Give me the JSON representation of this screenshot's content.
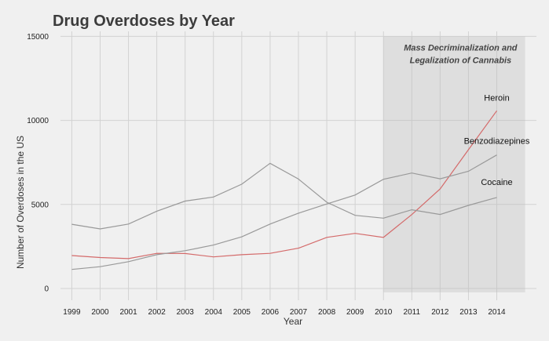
{
  "chart_data": {
    "type": "line",
    "title": "Drug Overdoses by Year",
    "xlabel": "Year",
    "ylabel": "Number of Overdoses in the US",
    "x": [
      1999,
      2000,
      2001,
      2002,
      2003,
      2004,
      2005,
      2006,
      2007,
      2008,
      2009,
      2010,
      2011,
      2012,
      2013,
      2014
    ],
    "x_tick_labels": [
      "1999",
      "2000",
      "2001",
      "2002",
      "2003",
      "2004",
      "2005",
      "2006",
      "2007",
      "2008",
      "2009",
      "2010",
      "2011",
      "2012",
      "2013",
      "2014"
    ],
    "xlim": [
      1998.6,
      2015.4
    ],
    "ylim": [
      -700,
      15300
    ],
    "y_ticks": [
      0,
      5000,
      10000,
      15000
    ],
    "y_tick_labels": [
      "0",
      "5000",
      "10000",
      "15000"
    ],
    "grid": true,
    "series": [
      {
        "name": "Heroin",
        "color": "#d46a6a",
        "values": [
          1960,
          1842,
          1779,
          2089,
          2080,
          1878,
          2009,
          2088,
          2399,
          3041,
          3278,
          3036,
          4397,
          5925,
          8257,
          10574
        ]
      },
      {
        "name": "Benzodiazepines",
        "color": "#999999",
        "values": [
          1135,
          1298,
          1594,
          2012,
          2248,
          2585,
          3076,
          3835,
          4480,
          5026,
          5561,
          6497,
          6872,
          6524,
          6973,
          7945
        ]
      },
      {
        "name": "Cocaine",
        "color": "#999999",
        "values": [
          3822,
          3544,
          3833,
          4599,
          5199,
          5443,
          6208,
          7448,
          6512,
          5129,
          4350,
          4183,
          4681,
          4404,
          4944,
          5415
        ]
      }
    ],
    "annotation": {
      "lines": [
        "Mass Decriminalization and",
        "Legalization of Cannabis"
      ],
      "x_start": 2010,
      "x_end": 2015
    }
  }
}
